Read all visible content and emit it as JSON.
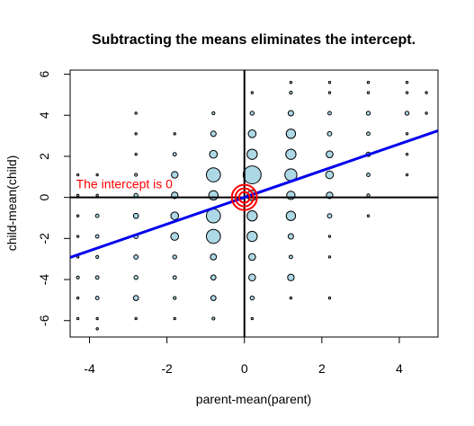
{
  "chart_data": {
    "type": "scatter",
    "title": "Subtracting the means eliminates the intercept.",
    "xlabel": "parent-mean(parent)",
    "ylabel": "child-mean(child)",
    "xlim": [
      -4.5,
      5
    ],
    "ylim": [
      -6.8,
      6.2
    ],
    "xticks": [
      -4,
      -2,
      0,
      2,
      4
    ],
    "yticks": [
      -6,
      -4,
      -2,
      0,
      2,
      4,
      6
    ],
    "x_tick_labels": [
      "-4",
      "-2",
      "0",
      "2",
      "4"
    ],
    "y_tick_labels": [
      "-6",
      "-4",
      "-2",
      "0",
      "2",
      "4",
      "6"
    ],
    "grid": false,
    "point_fill": "#add8e6",
    "point_stroke": "#000000",
    "reference_lines": {
      "x": 0,
      "y": 0,
      "color": "#000000"
    },
    "regression_line": {
      "intercept": 0,
      "slope": 0.65,
      "color": "#0000ee"
    },
    "annotation": {
      "text": "The intercept is 0",
      "x": -3.1,
      "y": 0.45,
      "color": "#ff0000"
    },
    "origin_marker": {
      "x": 0,
      "y": 0,
      "color": "#ff0000",
      "rings": 3
    },
    "points": [
      {
        "x": -4.3,
        "y": 1.1,
        "n": 1
      },
      {
        "x": -3.8,
        "y": 1.1,
        "n": 1
      },
      {
        "x": -4.3,
        "y": 0.1,
        "n": 1
      },
      {
        "x": -3.8,
        "y": 0.1,
        "n": 1
      },
      {
        "x": -4.3,
        "y": -0.9,
        "n": 1
      },
      {
        "x": -3.8,
        "y": -0.9,
        "n": 3
      },
      {
        "x": -4.3,
        "y": -1.9,
        "n": 1
      },
      {
        "x": -3.8,
        "y": -1.9,
        "n": 3
      },
      {
        "x": -4.3,
        "y": -2.9,
        "n": 1
      },
      {
        "x": -3.8,
        "y": -2.9,
        "n": 2
      },
      {
        "x": -4.3,
        "y": -3.9,
        "n": 2
      },
      {
        "x": -3.8,
        "y": -3.9,
        "n": 3
      },
      {
        "x": -4.3,
        "y": -4.9,
        "n": 1
      },
      {
        "x": -3.8,
        "y": -4.9,
        "n": 3
      },
      {
        "x": -4.3,
        "y": -5.9,
        "n": 1
      },
      {
        "x": -3.8,
        "y": -5.9,
        "n": 1
      },
      {
        "x": -3.8,
        "y": -6.4,
        "n": 1
      },
      {
        "x": -2.8,
        "y": 4.1,
        "n": 1
      },
      {
        "x": -2.8,
        "y": 3.1,
        "n": 1
      },
      {
        "x": -2.8,
        "y": 2.1,
        "n": 1
      },
      {
        "x": -2.8,
        "y": 1.1,
        "n": 2
      },
      {
        "x": -2.8,
        "y": 0.1,
        "n": 4
      },
      {
        "x": -2.8,
        "y": -0.9,
        "n": 7
      },
      {
        "x": -2.8,
        "y": -1.9,
        "n": 5
      },
      {
        "x": -2.8,
        "y": -2.9,
        "n": 5
      },
      {
        "x": -2.8,
        "y": -3.9,
        "n": 4
      },
      {
        "x": -2.8,
        "y": -4.9,
        "n": 7
      },
      {
        "x": -2.8,
        "y": -5.9,
        "n": 1
      },
      {
        "x": -1.8,
        "y": 3.1,
        "n": 1
      },
      {
        "x": -1.8,
        "y": 2.1,
        "n": 3
      },
      {
        "x": -1.8,
        "y": 1.1,
        "n": 12
      },
      {
        "x": -1.8,
        "y": 0.1,
        "n": 12
      },
      {
        "x": -1.8,
        "y": -0.9,
        "n": 17
      },
      {
        "x": -1.8,
        "y": -1.9,
        "n": 17
      },
      {
        "x": -1.8,
        "y": -2.9,
        "n": 4
      },
      {
        "x": -1.8,
        "y": -3.9,
        "n": 3
      },
      {
        "x": -1.8,
        "y": -4.9,
        "n": 2
      },
      {
        "x": -1.8,
        "y": -5.9,
        "n": 1
      },
      {
        "x": -0.8,
        "y": 4.1,
        "n": 2
      },
      {
        "x": -0.8,
        "y": 3.1,
        "n": 8
      },
      {
        "x": -0.8,
        "y": 2.1,
        "n": 17
      },
      {
        "x": -0.8,
        "y": 1.1,
        "n": 58
      },
      {
        "x": -0.8,
        "y": 0.1,
        "n": 25
      },
      {
        "x": -0.8,
        "y": -0.9,
        "n": 58
      },
      {
        "x": -0.8,
        "y": -1.9,
        "n": 58
      },
      {
        "x": -0.8,
        "y": -2.9,
        "n": 10
      },
      {
        "x": -0.8,
        "y": -3.9,
        "n": 7
      },
      {
        "x": -0.8,
        "y": -4.9,
        "n": 7
      },
      {
        "x": -0.8,
        "y": -5.9,
        "n": 2
      },
      {
        "x": 0.2,
        "y": 5.1,
        "n": 1
      },
      {
        "x": 0.2,
        "y": 4.1,
        "n": 4
      },
      {
        "x": 0.2,
        "y": 3.1,
        "n": 17
      },
      {
        "x": 0.2,
        "y": 2.1,
        "n": 30
      },
      {
        "x": 0.2,
        "y": 1.1,
        "n": 95
      },
      {
        "x": 0.2,
        "y": 0.1,
        "n": 30
      },
      {
        "x": 0.2,
        "y": -0.9,
        "n": 30
      },
      {
        "x": 0.2,
        "y": -1.9,
        "n": 30
      },
      {
        "x": 0.2,
        "y": -2.9,
        "n": 13
      },
      {
        "x": 0.2,
        "y": -3.9,
        "n": 13
      },
      {
        "x": 0.2,
        "y": -4.9,
        "n": 4
      },
      {
        "x": 0.2,
        "y": -5.9,
        "n": 1
      },
      {
        "x": 1.2,
        "y": 5.6,
        "n": 1
      },
      {
        "x": 1.2,
        "y": 5.1,
        "n": 2
      },
      {
        "x": 1.2,
        "y": 4.1,
        "n": 8
      },
      {
        "x": 1.2,
        "y": 3.1,
        "n": 25
      },
      {
        "x": 1.2,
        "y": 2.1,
        "n": 30
      },
      {
        "x": 1.2,
        "y": 1.1,
        "n": 42
      },
      {
        "x": 1.2,
        "y": 0.1,
        "n": 20
      },
      {
        "x": 1.2,
        "y": -0.9,
        "n": 25
      },
      {
        "x": 1.2,
        "y": -1.9,
        "n": 8
      },
      {
        "x": 1.2,
        "y": -2.9,
        "n": 3
      },
      {
        "x": 1.2,
        "y": -3.9,
        "n": 12
      },
      {
        "x": 1.2,
        "y": -4.9,
        "n": 1
      },
      {
        "x": 2.2,
        "y": 5.6,
        "n": 1
      },
      {
        "x": 2.2,
        "y": 5.1,
        "n": 1
      },
      {
        "x": 2.2,
        "y": 4.1,
        "n": 3
      },
      {
        "x": 2.2,
        "y": 3.1,
        "n": 5
      },
      {
        "x": 2.2,
        "y": 2.1,
        "n": 13
      },
      {
        "x": 2.2,
        "y": 1.1,
        "n": 17
      },
      {
        "x": 2.2,
        "y": 0.1,
        "n": 12
      },
      {
        "x": 2.2,
        "y": -0.9,
        "n": 5
      },
      {
        "x": 2.2,
        "y": -1.9,
        "n": 1
      },
      {
        "x": 2.2,
        "y": -2.9,
        "n": 1
      },
      {
        "x": 2.2,
        "y": -4.9,
        "n": 1
      },
      {
        "x": 3.2,
        "y": 5.6,
        "n": 1
      },
      {
        "x": 3.2,
        "y": 5.1,
        "n": 1
      },
      {
        "x": 3.2,
        "y": 4.1,
        "n": 4
      },
      {
        "x": 3.2,
        "y": 3.1,
        "n": 3
      },
      {
        "x": 3.2,
        "y": 2.1,
        "n": 5
      },
      {
        "x": 3.2,
        "y": 1.1,
        "n": 3
      },
      {
        "x": 3.2,
        "y": 0.1,
        "n": 2
      },
      {
        "x": 3.2,
        "y": -0.9,
        "n": 1
      },
      {
        "x": 4.2,
        "y": 5.6,
        "n": 1
      },
      {
        "x": 4.2,
        "y": 5.1,
        "n": 1
      },
      {
        "x": 4.2,
        "y": 4.1,
        "n": 4
      },
      {
        "x": 4.2,
        "y": 3.1,
        "n": 1
      },
      {
        "x": 4.2,
        "y": 2.1,
        "n": 1
      },
      {
        "x": 4.2,
        "y": 1.1,
        "n": 1
      },
      {
        "x": 4.7,
        "y": 5.1,
        "n": 1
      },
      {
        "x": 4.7,
        "y": 4.1,
        "n": 1
      }
    ]
  }
}
